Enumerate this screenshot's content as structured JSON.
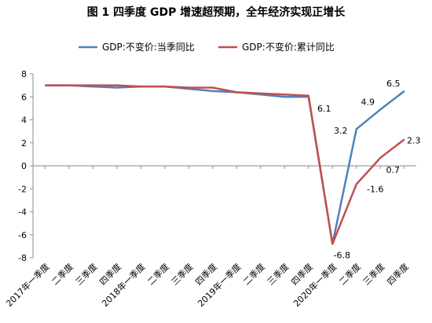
{
  "chart_data": {
    "type": "line",
    "title": "图 1 四季度 GDP 增速超预期，全年经济实现正增长",
    "xlabel": "",
    "ylabel": "",
    "ylim": [
      -8,
      8
    ],
    "yticks": [
      -8,
      -6,
      -4,
      -2,
      0,
      2,
      4,
      6,
      8
    ],
    "grid": false,
    "legend": "top",
    "categories": [
      "2017年一季度",
      "二季度",
      "三季度",
      "四季度",
      "2018年一季度",
      "二季度",
      "三季度",
      "四季度",
      "2019年一季度",
      "二季度",
      "三季度",
      "四季度",
      "2020年一季度",
      "二季度",
      "三季度",
      "四季度"
    ],
    "series": [
      {
        "name": "GDP:不变价:当季同比",
        "color": "#4F81BD",
        "values": [
          7.0,
          7.0,
          6.9,
          6.8,
          6.9,
          6.9,
          6.7,
          6.5,
          6.4,
          6.2,
          6.0,
          6.0,
          -6.8,
          3.2,
          4.9,
          6.5
        ]
      },
      {
        "name": "GDP:不变价:累计同比",
        "color": "#C0504D",
        "values": [
          7.0,
          7.0,
          7.0,
          7.0,
          6.9,
          6.9,
          6.8,
          6.8,
          6.4,
          6.3,
          6.2,
          6.1,
          -6.8,
          -1.6,
          0.7,
          2.3
        ]
      }
    ],
    "data_labels": [
      {
        "text": "6.1",
        "x": 11,
        "y": 6.1,
        "series": 1
      },
      {
        "text": "-6.8",
        "x": 12,
        "y": -6.8,
        "series": 0
      },
      {
        "text": "3.2",
        "x": 13,
        "y": 3.2,
        "series": 0
      },
      {
        "text": "-1.6",
        "x": 13,
        "y": -1.6,
        "series": 1
      },
      {
        "text": "4.9",
        "x": 14,
        "y": 4.9,
        "series": 0
      },
      {
        "text": "0.7",
        "x": 14,
        "y": 0.7,
        "series": 1
      },
      {
        "text": "6.5",
        "x": 15,
        "y": 6.5,
        "series": 0
      },
      {
        "text": "2.3",
        "x": 15,
        "y": 2.3,
        "series": 1
      }
    ]
  }
}
